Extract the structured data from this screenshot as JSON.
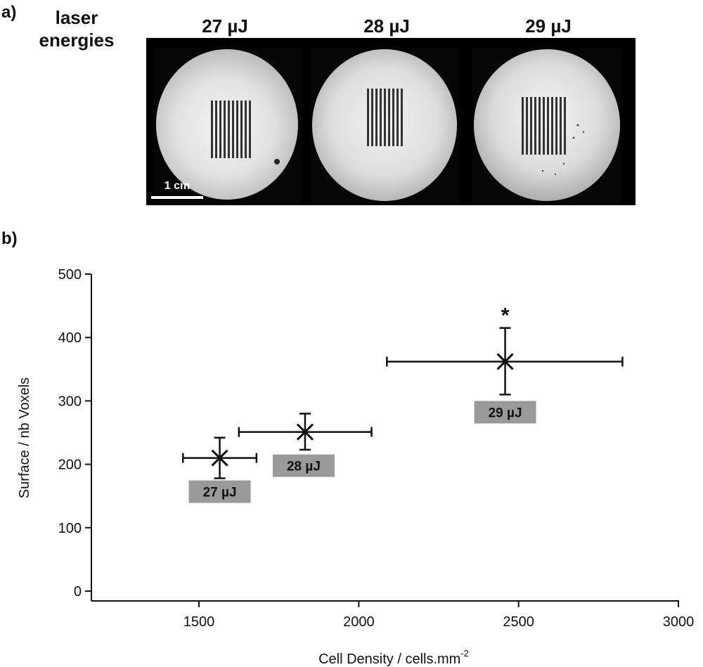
{
  "panel_a": {
    "label": "a)",
    "title_line1": "laser",
    "title_line2": "energies",
    "images": [
      {
        "energy_label": "27 µJ"
      },
      {
        "energy_label": "28 µJ"
      },
      {
        "energy_label": "29 µJ"
      }
    ],
    "scale_bar_label": "1 cm"
  },
  "panel_b": {
    "label": "b)"
  },
  "chart_data": {
    "type": "scatter",
    "xlabel": "Cell Density / cells.mm",
    "xlabel_superscript": "-2",
    "ylabel": "Surface / nb Voxels",
    "xlim": [
      1200,
      3000
    ],
    "ylim": [
      0,
      500
    ],
    "x_ticks": [
      1500,
      2000,
      2500,
      3000
    ],
    "y_ticks": [
      0,
      100,
      200,
      300,
      400,
      500
    ],
    "grid": false,
    "points": [
      {
        "x": 1565,
        "y": 210,
        "x_err_low": 1450,
        "x_err_high": 1680,
        "y_err_low": 178,
        "y_err_high": 242,
        "label": "27 µJ",
        "annotation": ""
      },
      {
        "x": 1832,
        "y": 251,
        "x_err_low": 1625,
        "x_err_high": 2040,
        "y_err_low": 223,
        "y_err_high": 280,
        "label": "28 µJ",
        "annotation": ""
      },
      {
        "x": 2458,
        "y": 362,
        "x_err_low": 2088,
        "x_err_high": 2825,
        "y_err_low": 310,
        "y_err_high": 415,
        "label": "29 µJ",
        "annotation": "*"
      }
    ]
  }
}
